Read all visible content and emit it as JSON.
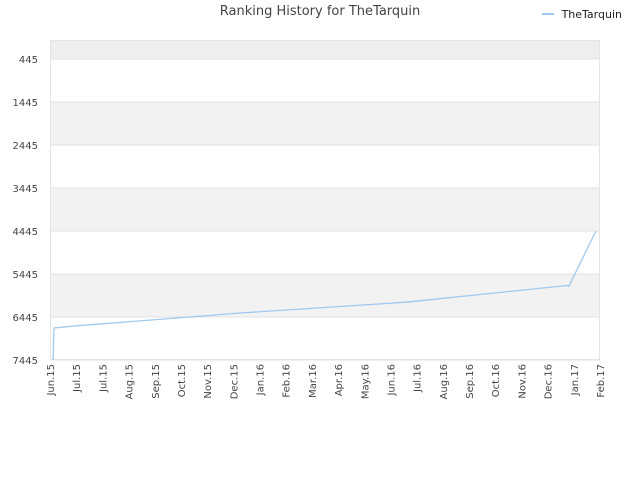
{
  "chart_data": {
    "type": "line",
    "title": "Ranking History for TheTarquin",
    "xlabel": "",
    "ylabel": "",
    "y_reversed": true,
    "ylim": [
      445,
      7445
    ],
    "yticks": [
      445,
      1445,
      2445,
      3445,
      4445,
      5445,
      6445,
      7445
    ],
    "x_tick_labels": [
      "Jun.15",
      "Jul.15",
      "Jul.15",
      "Aug.15",
      "Sep.15",
      "Oct.15",
      "Nov.15",
      "Dec.15",
      "Jan.16",
      "Feb.16",
      "Mar.16",
      "Apr.16",
      "May.16",
      "Jun.16",
      "Jul.16",
      "Aug.16",
      "Sep.16",
      "Oct.16",
      "Nov.16",
      "Dec.16",
      "Jan.17",
      "Feb.17"
    ],
    "grid": true,
    "alternating_bands": true,
    "legend_position": "top-right",
    "series": [
      {
        "name": "TheTarquin",
        "color": "#9fc9ef",
        "points": [
          {
            "x": "2015-06-05",
            "y": 7445
          },
          {
            "x": "2015-06-06",
            "y": 6700
          },
          {
            "x": "2015-07-01",
            "y": 6650
          },
          {
            "x": "2016-01-01",
            "y": 6350
          },
          {
            "x": "2016-07-01",
            "y": 6100
          },
          {
            "x": "2016-12-28",
            "y": 5710
          },
          {
            "x": "2016-12-29",
            "y": 5730
          },
          {
            "x": "2017-01-28",
            "y": 4445
          }
        ]
      }
    ]
  }
}
